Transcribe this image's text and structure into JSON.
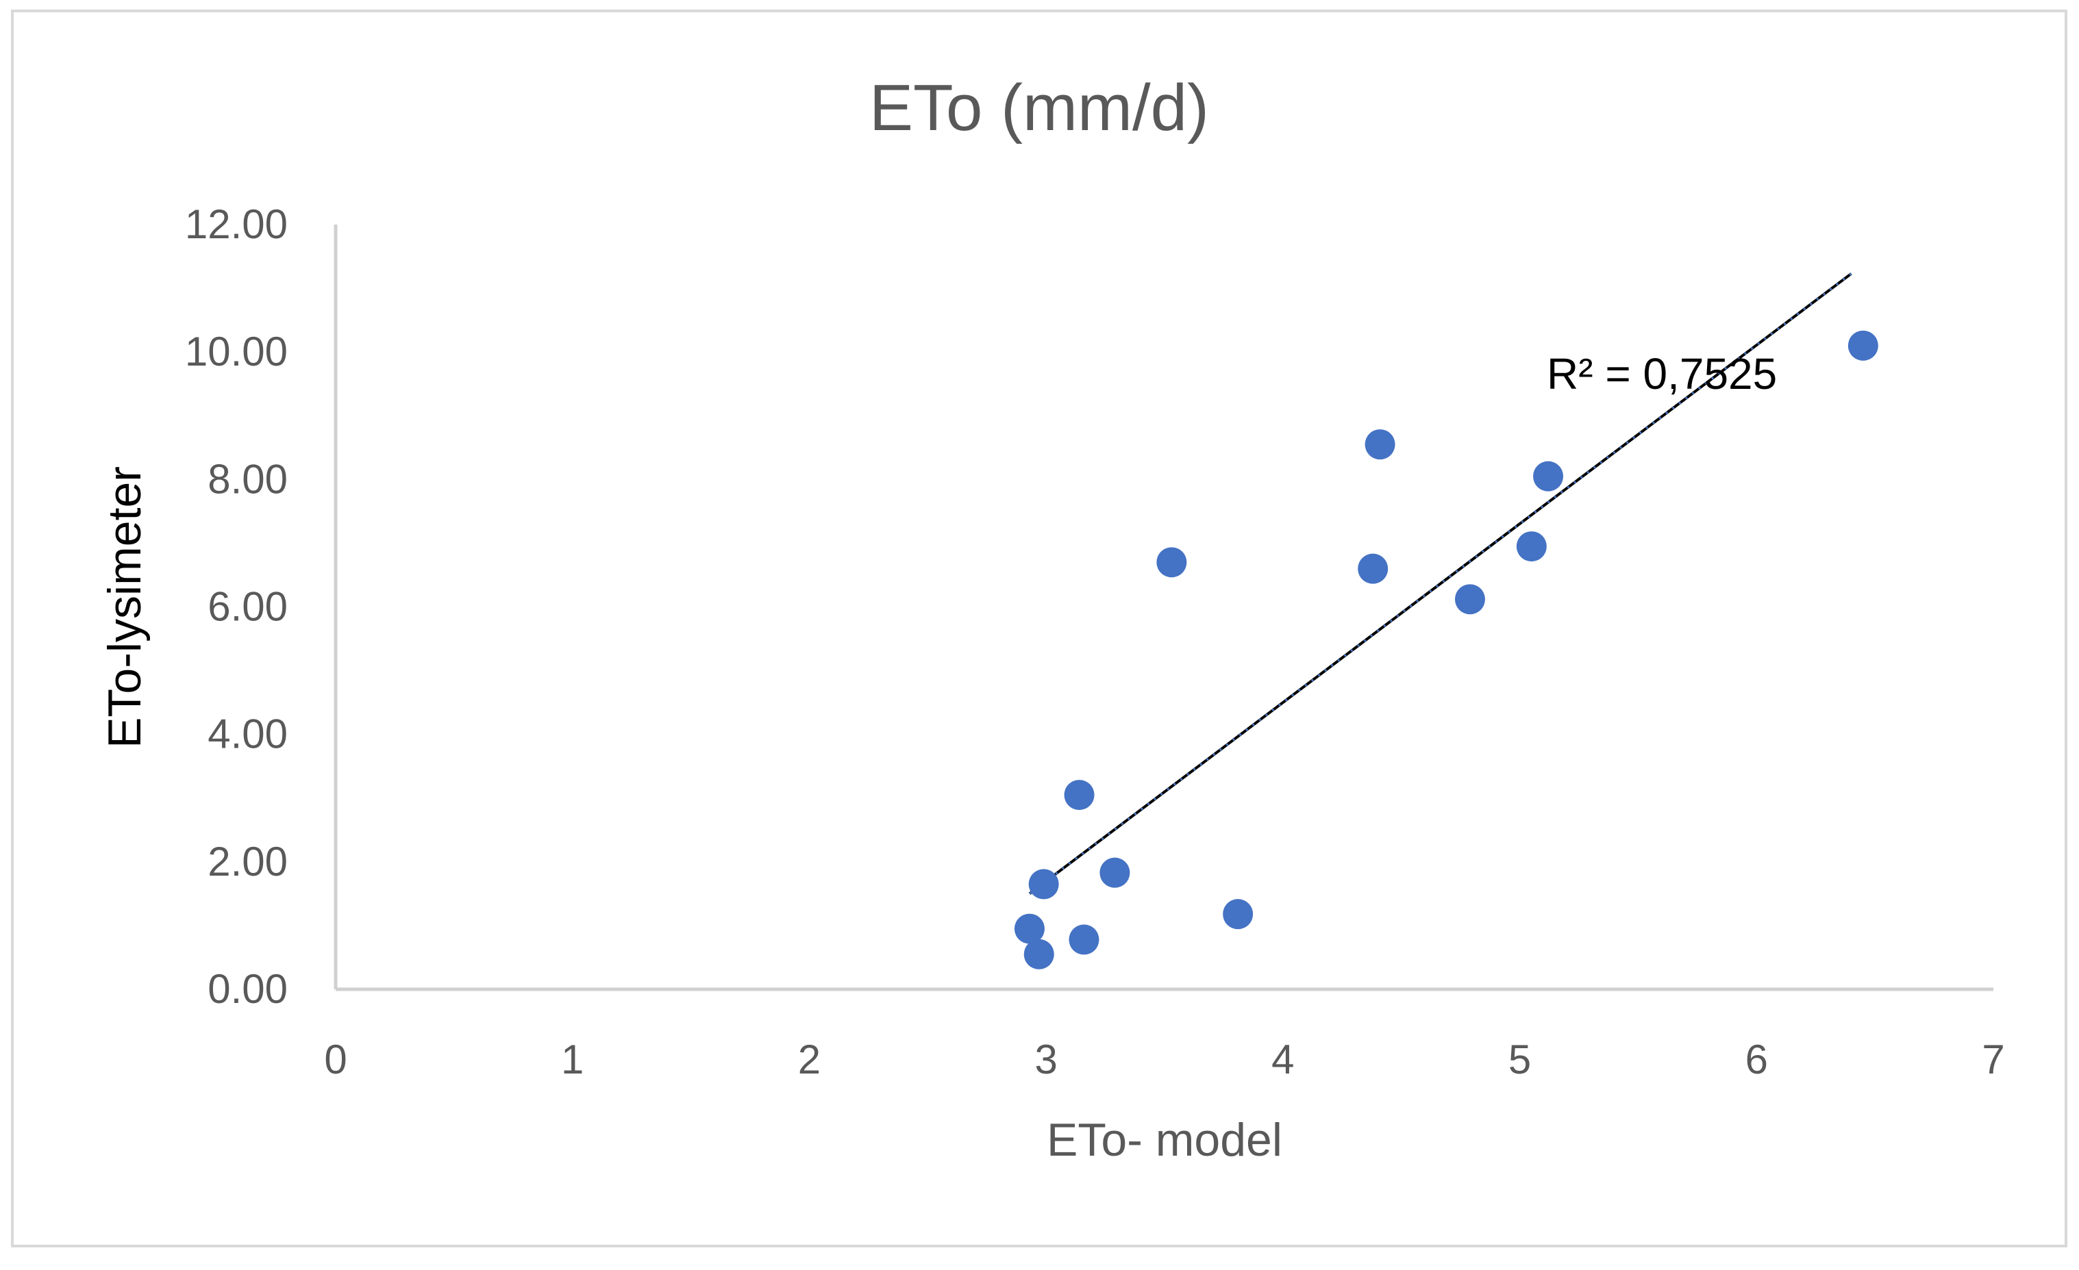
{
  "chart_data": {
    "type": "scatter",
    "title": "ETo (mm/d)",
    "xlabel": "ETo- model",
    "ylabel": "ETo-lysimeter",
    "xlim": [
      0,
      7
    ],
    "ylim": [
      0,
      12
    ],
    "x_ticks": [
      "0",
      "1",
      "2",
      "3",
      "4",
      "5",
      "6",
      "7"
    ],
    "y_ticks": [
      "0.00",
      "2.00",
      "4.00",
      "6.00",
      "8.00",
      "10.00",
      "12.00"
    ],
    "grid": false,
    "legend": "none",
    "marker_color": "#4472c4",
    "trendline_color": "#000000",
    "series": [
      {
        "name": "ETo",
        "x": [
          2.93,
          2.97,
          2.99,
          3.14,
          3.16,
          3.29,
          3.53,
          3.81,
          4.38,
          4.41,
          4.79,
          5.05,
          5.12,
          6.45
        ],
        "y": [
          0.95,
          0.55,
          1.65,
          3.05,
          0.78,
          1.83,
          6.7,
          1.18,
          6.6,
          8.55,
          6.12,
          6.95,
          8.05,
          10.1
        ]
      }
    ],
    "trendline": {
      "type": "linear",
      "x_range": [
        2.93,
        6.4
      ],
      "y_range": [
        1.5,
        11.23
      ],
      "label": "R² = 0,7525"
    }
  }
}
